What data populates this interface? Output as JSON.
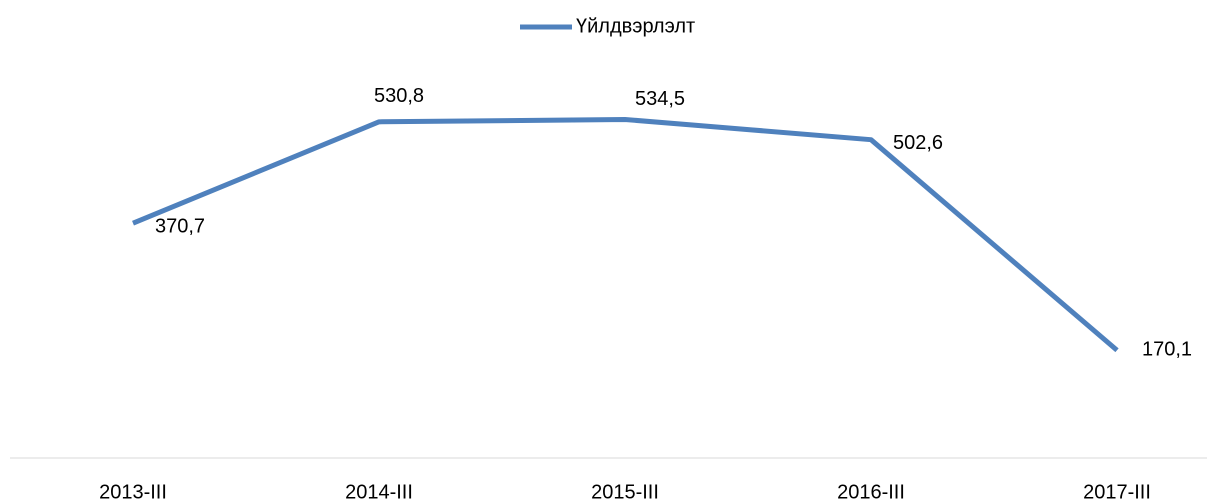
{
  "chart_data": {
    "type": "line",
    "categories": [
      "2013-III",
      "2014-III",
      "2015-III",
      "2016-III",
      "2017-III"
    ],
    "series": [
      {
        "name": "Үйлдвэрлэлт",
        "color": "#4f81bd",
        "values": [
          370.7,
          530.8,
          534.5,
          502.6,
          170.1
        ],
        "value_labels": [
          "370,7",
          "530,8",
          "534,5",
          "502,6",
          "170,1"
        ]
      }
    ],
    "ylim": [
      0,
      600
    ],
    "legend": "top"
  }
}
